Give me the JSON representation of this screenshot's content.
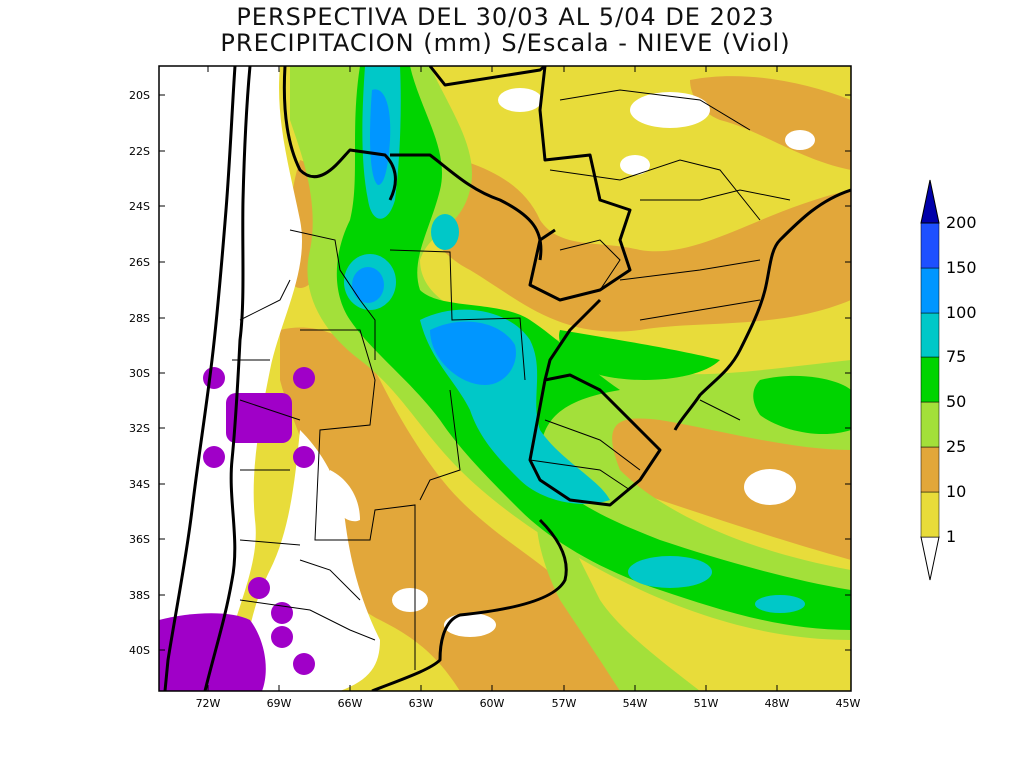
{
  "title": {
    "line1": "PERSPECTIVA DEL 30/03 AL 5/04 DE 2023",
    "line2": "PRECIPITACION (mm) S/Escala - NIEVE (Viol)"
  },
  "axes": {
    "lat_labels": [
      "20S",
      "22S",
      "24S",
      "26S",
      "28S",
      "30S",
      "32S",
      "34S",
      "36S",
      "38S",
      "40S"
    ],
    "lon_labels": [
      "72W",
      "69W",
      "66W",
      "63W",
      "60W",
      "57W",
      "54W",
      "51W",
      "48W",
      "45W"
    ]
  },
  "legend": {
    "labels": [
      "1",
      "10",
      "25",
      "50",
      "75",
      "100",
      "150",
      "200"
    ],
    "colors": {
      "c1": "#e8dc3a",
      "c10": "#e2a73a",
      "c25": "#a3e03a",
      "c50": "#00d400",
      "c75": "#00c8c8",
      "c100": "#0096ff",
      "c150": "#1e50ff",
      "c200": "#0000aa",
      "snow": "#a000c8"
    }
  }
}
